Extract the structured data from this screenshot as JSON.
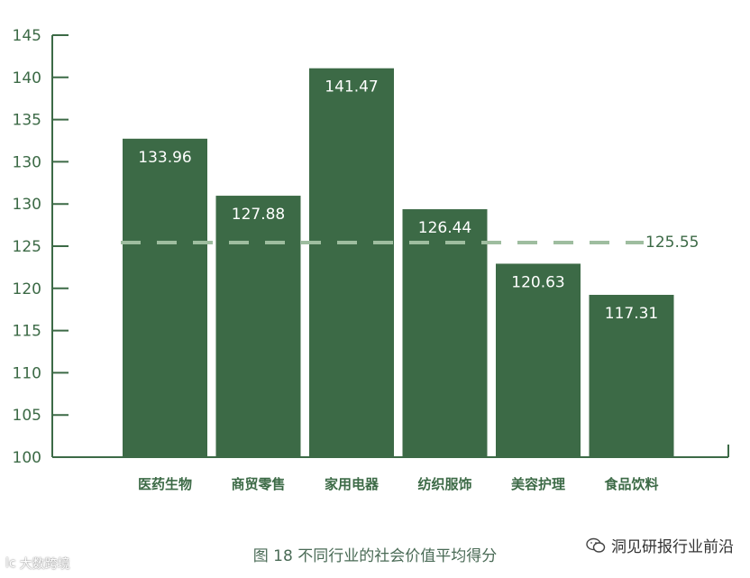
{
  "chart_data": {
    "type": "bar",
    "categories": [
      "医药生物",
      "商贸零售",
      "家用电器",
      "纺织服饰",
      "美容护理",
      "食品饮料"
    ],
    "values": [
      133.96,
      127.88,
      141.47,
      126.44,
      120.63,
      117.31
    ],
    "value_labels": [
      "133.96",
      "127.88",
      "141.47",
      "126.44",
      "120.63",
      "117.31"
    ],
    "ylim": [
      100,
      145
    ],
    "yticks": [
      "100",
      "105",
      "110",
      "115",
      "120",
      "125",
      "130",
      "130",
      "135",
      "140",
      "145"
    ],
    "reference_line": {
      "value": 125.55,
      "label": "125.55"
    },
    "bar_color": "#3c6a46",
    "reference_color": "#9ebd9f",
    "axis_color": "#3c6a46",
    "xlabel": "",
    "ylabel": "",
    "grid": false
  },
  "caption": "图 18 不同行业的社会价值平均得分",
  "watermark_right": "洞见研报行业前沿",
  "watermark_left": "大数跨境",
  "watermark_left_icon": "lc"
}
